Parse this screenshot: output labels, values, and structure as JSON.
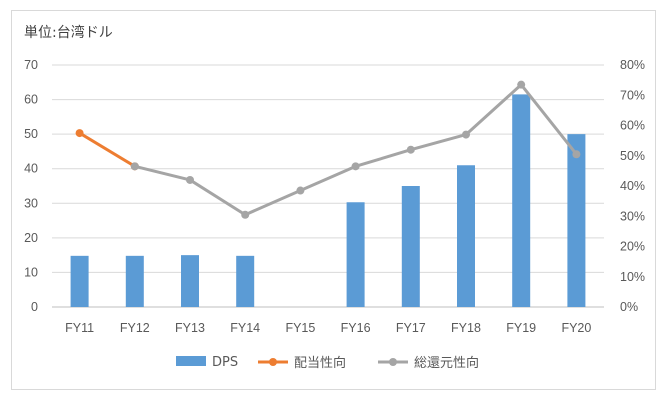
{
  "chart_data": {
    "type": "bar+line",
    "unit_label": "単位:台湾ドル",
    "categories": [
      "FY11",
      "FY12",
      "FY13",
      "FY14",
      "FY15",
      "FY16",
      "FY17",
      "FY18",
      "FY19",
      "FY20"
    ],
    "y_left": {
      "min": 0,
      "max": 70,
      "ticks": [
        0,
        10,
        20,
        30,
        40,
        50,
        60,
        70
      ]
    },
    "y_right": {
      "min": 0,
      "max": 80,
      "ticks": [
        "0%",
        "10%",
        "20%",
        "30%",
        "40%",
        "50%",
        "60%",
        "70%",
        "80%"
      ]
    },
    "series": [
      {
        "name": "DPS",
        "type": "bar",
        "axis": "left",
        "color": "#5b9bd5",
        "values": [
          14.8,
          14.8,
          15.0,
          14.8,
          null,
          30.3,
          35.0,
          41.0,
          61.5,
          50.0
        ]
      },
      {
        "name": "配当性向",
        "type": "line",
        "axis": "right",
        "color": "#ed7d31",
        "values": [
          57.5,
          46.5,
          null,
          null,
          null,
          null,
          null,
          null,
          null,
          null
        ]
      },
      {
        "name": "総還元性向",
        "type": "line",
        "axis": "right",
        "color": "#a5a5a5",
        "values": [
          null,
          46.5,
          42.0,
          30.5,
          38.5,
          46.5,
          52.0,
          57.0,
          73.5,
          50.5
        ]
      }
    ],
    "grid": true,
    "legend_position": "bottom"
  }
}
